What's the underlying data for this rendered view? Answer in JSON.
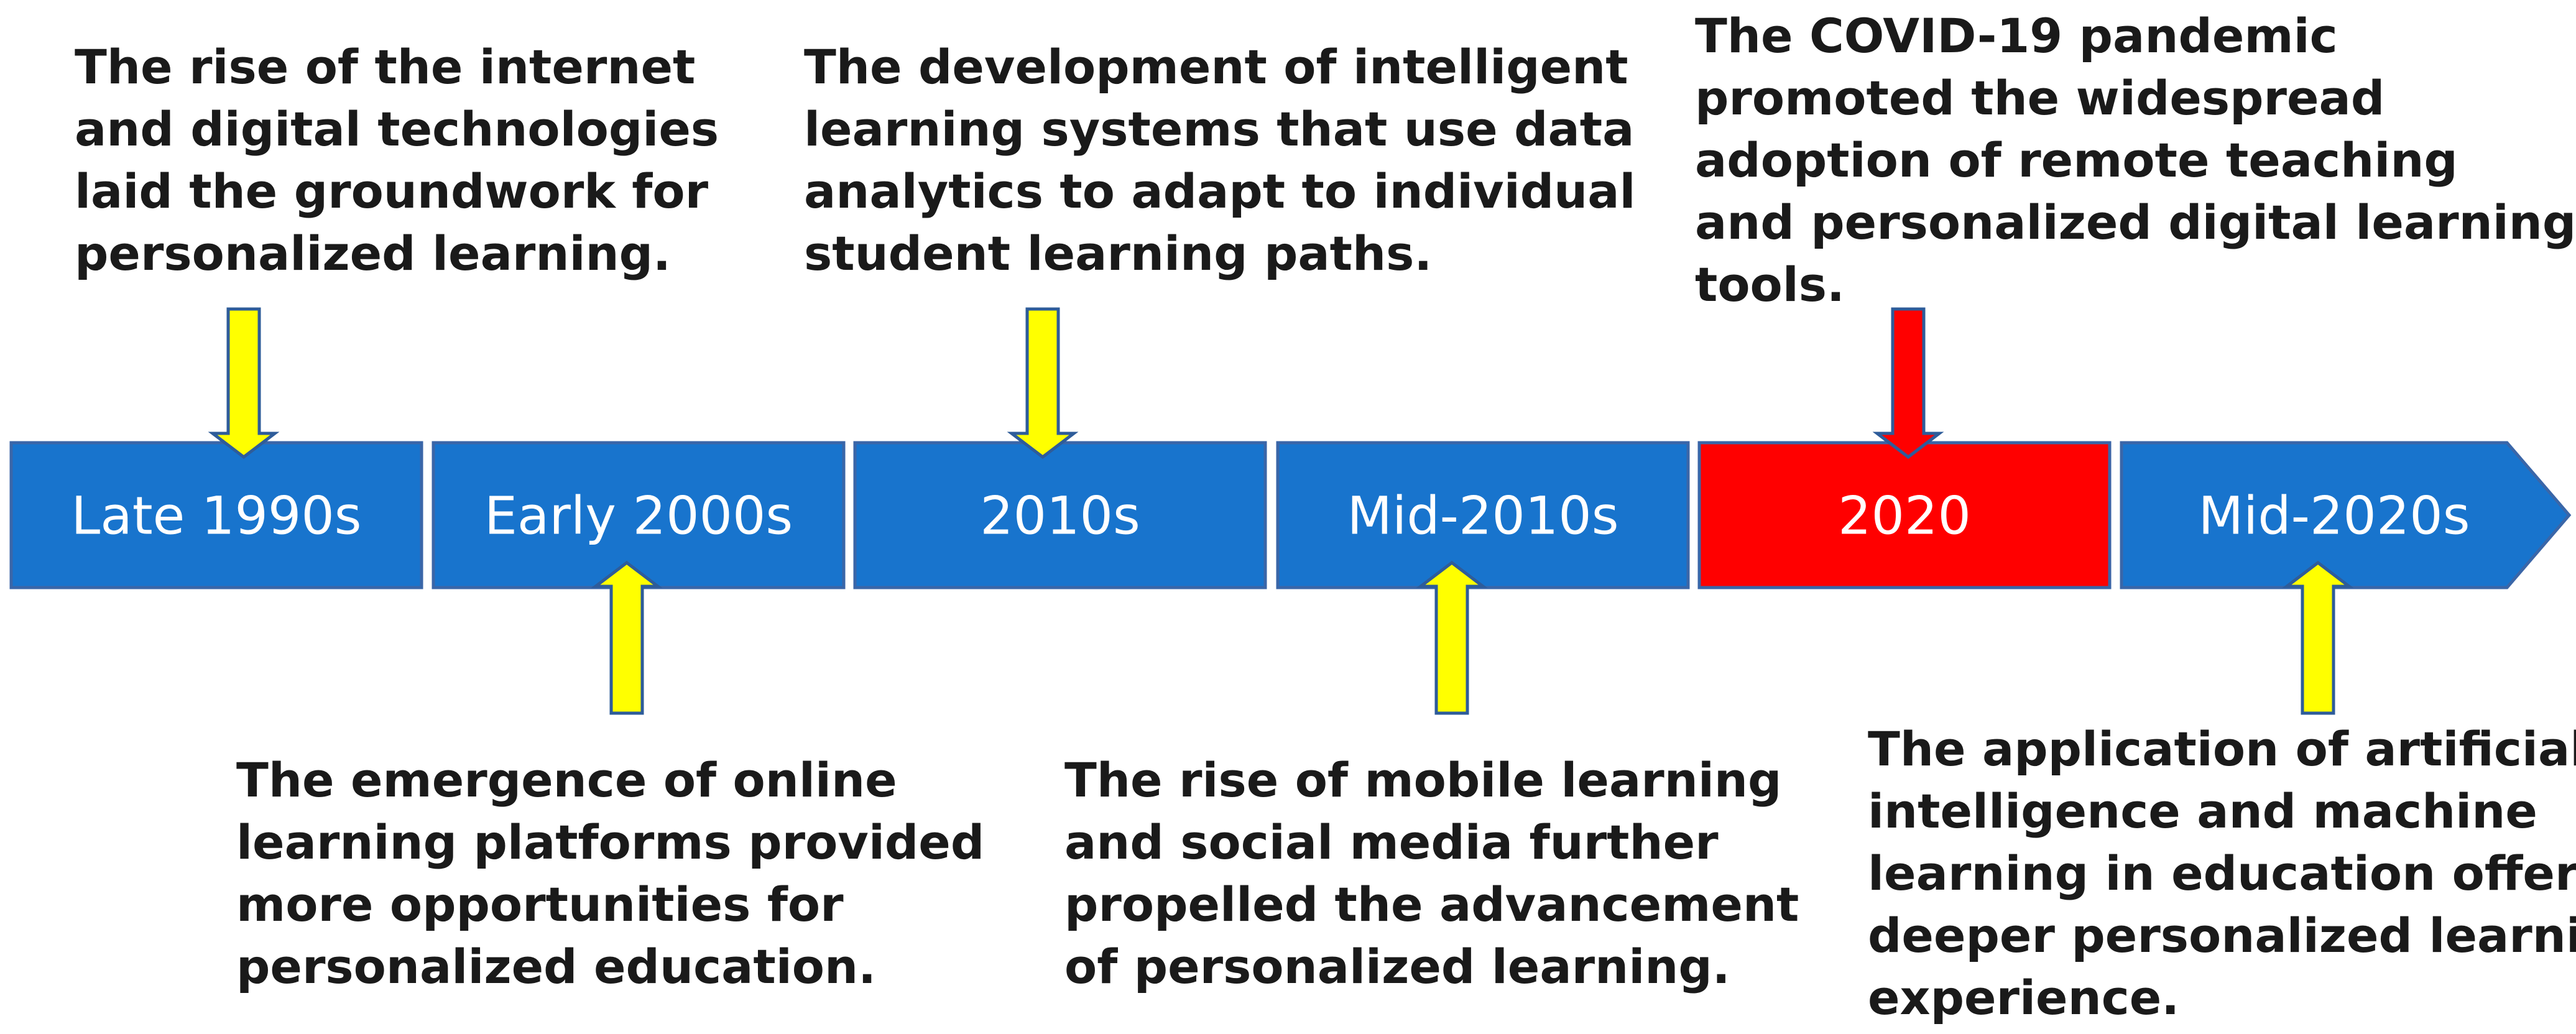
{
  "colors": {
    "segment_default": "#1874CD",
    "segment_highlight": "#FF0000",
    "segment_border": "#3A66A8",
    "arrow_default": "#FFFF00",
    "arrow_highlight": "#FF0000",
    "arrow_border": "#2E5C9A",
    "label_text": "#FFFFFF",
    "event_text": "#1A1A1A"
  },
  "timeline": {
    "periods": [
      {
        "label": "Late 1990s",
        "highlight": false
      },
      {
        "label": "Early 2000s",
        "highlight": false
      },
      {
        "label": "2010s",
        "highlight": false
      },
      {
        "label": "Mid-2010s",
        "highlight": false
      },
      {
        "label": "2020",
        "highlight": true
      },
      {
        "label": "Mid-2020s",
        "highlight": false
      }
    ]
  },
  "events": [
    {
      "period": "Late 1990s",
      "position": "above",
      "lines": [
        "The rise of the internet",
        "and digital technologies",
        "laid the groundwork for",
        "personalized learning."
      ]
    },
    {
      "period": "Early 2000s",
      "position": "below",
      "lines": [
        "The emergence of online",
        "learning platforms provided",
        "more opportunities for",
        "personalized education."
      ]
    },
    {
      "period": "2010s",
      "position": "above",
      "lines": [
        "The development of intelligent",
        "learning systems that use data",
        "analytics to adapt to individual",
        "student learning paths."
      ]
    },
    {
      "period": "Mid-2010s",
      "position": "below",
      "lines": [
        "The rise of mobile learning",
        "and social media further",
        "propelled the advancement",
        "of personalized learning."
      ]
    },
    {
      "period": "2020",
      "position": "above",
      "lines": [
        "The COVID-19 pandemic",
        "promoted the widespread",
        "adoption of remote teaching",
        "and personalized digital learning",
        "tools."
      ]
    },
    {
      "period": "Mid-2020s",
      "position": "below",
      "lines": [
        "The application of artificial",
        "intelligence and machine",
        "learning in education offers a",
        "deeper personalized learning",
        "experience."
      ]
    }
  ]
}
